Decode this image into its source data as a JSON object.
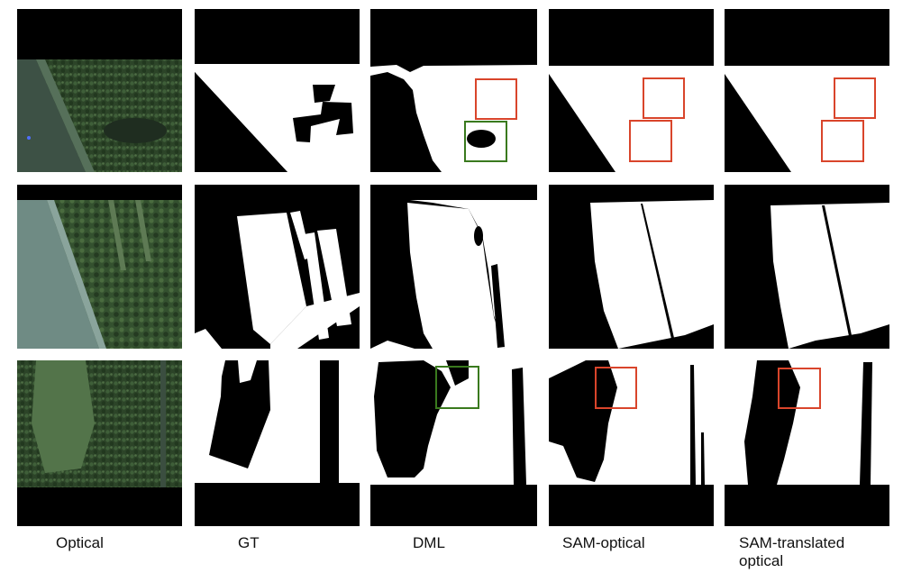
{
  "columns": [
    {
      "label": "Optical"
    },
    {
      "label": "GT"
    },
    {
      "label": "DML"
    },
    {
      "label": "SAM-optical"
    },
    {
      "label": "SAM-translated optical"
    }
  ],
  "rows": 3,
  "colors": {
    "background": "#ffffff",
    "mask_fg": "#ffffff",
    "mask_bg": "#000000",
    "highlight_red": "#d9452b",
    "highlight_green": "#3a7a1e",
    "forest_dark": "#2f4a2b",
    "canal": "#3e5348"
  }
}
